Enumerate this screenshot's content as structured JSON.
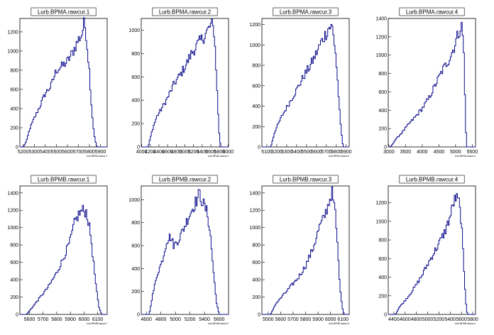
{
  "chart_data": [
    {
      "type": "histogram",
      "title": "Lurb.BPMA.rawcur.1",
      "xlabel": "Lurb.BPMA.rawcur.1",
      "xlim": [
        5170,
        5960
      ],
      "ylim": [
        0,
        1340
      ],
      "xticks": [
        "5200",
        "5300",
        "5400",
        "5500",
        "5600",
        "5700",
        "5800",
        "5900"
      ],
      "yticks": [
        "0",
        "200",
        "400",
        "600",
        "800",
        "1000",
        "1200"
      ],
      "profile": [
        [
          5200,
          0
        ],
        [
          5230,
          60
        ],
        [
          5260,
          190
        ],
        [
          5300,
          300
        ],
        [
          5350,
          420
        ],
        [
          5400,
          560
        ],
        [
          5450,
          630
        ],
        [
          5500,
          800
        ],
        [
          5550,
          840
        ],
        [
          5600,
          890
        ],
        [
          5650,
          990
        ],
        [
          5700,
          1120
        ],
        [
          5730,
          1170
        ],
        [
          5750,
          1280
        ],
        [
          5765,
          1240
        ],
        [
          5775,
          1100
        ],
        [
          5800,
          780
        ],
        [
          5820,
          400
        ],
        [
          5840,
          150
        ],
        [
          5860,
          20
        ],
        [
          5870,
          0
        ]
      ]
    },
    {
      "type": "histogram",
      "title": "Lurb.BPMA.rawcur.2",
      "xlabel": "Lurb.BPMA.rawcur.2",
      "xlim": [
        3990,
        6010
      ],
      "ylim": [
        0,
        1100
      ],
      "xticks": [
        "4000",
        "4200",
        "4400",
        "4600",
        "4800",
        "5000",
        "5200",
        "5400",
        "5600",
        "5800",
        "6000"
      ],
      "yticks": [
        "0",
        "200",
        "400",
        "600",
        "800",
        "1000"
      ],
      "profile": [
        [
          4150,
          0
        ],
        [
          4250,
          150
        ],
        [
          4350,
          260
        ],
        [
          4450,
          320
        ],
        [
          4600,
          420
        ],
        [
          4750,
          540
        ],
        [
          4900,
          620
        ],
        [
          5050,
          720
        ],
        [
          5150,
          800
        ],
        [
          5300,
          880
        ],
        [
          5450,
          950
        ],
        [
          5550,
          1010
        ],
        [
          5620,
          1050
        ],
        [
          5680,
          980
        ],
        [
          5720,
          700
        ],
        [
          5760,
          350
        ],
        [
          5800,
          80
        ],
        [
          5830,
          0
        ]
      ]
    },
    {
      "type": "histogram",
      "title": "Lurb.BPMA.rawcur.3",
      "xlabel": "Lurb.BPMA.rawcur.3",
      "xlim": [
        5050,
        5930
      ],
      "ylim": [
        0,
        1260
      ],
      "xticks": [
        "5100",
        "5200",
        "5300",
        "5400",
        "5500",
        "5600",
        "5700",
        "5800",
        "5900"
      ],
      "yticks": [
        "0",
        "200",
        "400",
        "600",
        "800",
        "1000",
        "1200"
      ],
      "profile": [
        [
          5140,
          0
        ],
        [
          5180,
          150
        ],
        [
          5250,
          300
        ],
        [
          5320,
          420
        ],
        [
          5400,
          560
        ],
        [
          5470,
          690
        ],
        [
          5540,
          800
        ],
        [
          5600,
          920
        ],
        [
          5650,
          1030
        ],
        [
          5700,
          1120
        ],
        [
          5730,
          1180
        ],
        [
          5760,
          1170
        ],
        [
          5790,
          950
        ],
        [
          5820,
          550
        ],
        [
          5840,
          250
        ],
        [
          5860,
          60
        ],
        [
          5870,
          0
        ]
      ]
    },
    {
      "type": "histogram",
      "title": "Lurb.BPMA.rawcur.4",
      "xlabel": "Lurb.BPMA.rawcur.4",
      "xlim": [
        2980,
        5600
      ],
      "ylim": [
        0,
        1400
      ],
      "xticks": [
        "3000",
        "3500",
        "4000",
        "4500",
        "5000",
        "5500"
      ],
      "yticks": [
        "0",
        "200",
        "400",
        "600",
        "800",
        "1000",
        "1200",
        "1400"
      ],
      "profile": [
        [
          3050,
          0
        ],
        [
          3200,
          80
        ],
        [
          3400,
          160
        ],
        [
          3600,
          250
        ],
        [
          3800,
          330
        ],
        [
          4000,
          420
        ],
        [
          4200,
          530
        ],
        [
          4400,
          680
        ],
        [
          4600,
          830
        ],
        [
          4800,
          950
        ],
        [
          4950,
          1080
        ],
        [
          5050,
          1200
        ],
        [
          5150,
          1300
        ],
        [
          5200,
          1320
        ],
        [
          5250,
          1000
        ],
        [
          5300,
          300
        ],
        [
          5330,
          0
        ]
      ]
    },
    {
      "type": "histogram",
      "title": "Lurb.BPMB.rawcur.1",
      "xlabel": "Lurb.BPMB.rawcur.1",
      "xlim": [
        5530,
        6170
      ],
      "ylim": [
        0,
        1480
      ],
      "xticks": [
        "5600",
        "5700",
        "5800",
        "5900",
        "6000",
        "6100"
      ],
      "yticks": [
        "0",
        "200",
        "400",
        "600",
        "800",
        "1000",
        "1200",
        "1400"
      ],
      "profile": [
        [
          5580,
          0
        ],
        [
          5620,
          80
        ],
        [
          5680,
          200
        ],
        [
          5740,
          320
        ],
        [
          5800,
          480
        ],
        [
          5850,
          650
        ],
        [
          5900,
          850
        ],
        [
          5930,
          1050
        ],
        [
          5960,
          1150
        ],
        [
          5990,
          1200
        ],
        [
          6020,
          1180
        ],
        [
          6050,
          900
        ],
        [
          6070,
          600
        ],
        [
          6090,
          300
        ],
        [
          6110,
          80
        ],
        [
          6130,
          0
        ]
      ]
    },
    {
      "type": "histogram",
      "title": "Lurb.BPMB.rawcur.2",
      "xlabel": "Lurb.BPMB.rawcur.2",
      "xlim": [
        4530,
        5730
      ],
      "ylim": [
        0,
        1120
      ],
      "xticks": [
        "4600",
        "4800",
        "5000",
        "5200",
        "5400",
        "5600"
      ],
      "yticks": [
        "0",
        "200",
        "400",
        "600",
        "800",
        "1000"
      ],
      "profile": [
        [
          4640,
          0
        ],
        [
          4680,
          150
        ],
        [
          4750,
          350
        ],
        [
          4820,
          470
        ],
        [
          4880,
          640
        ],
        [
          4930,
          680
        ],
        [
          4980,
          600
        ],
        [
          5050,
          660
        ],
        [
          5120,
          760
        ],
        [
          5200,
          880
        ],
        [
          5280,
          980
        ],
        [
          5330,
          1050
        ],
        [
          5380,
          970
        ],
        [
          5440,
          880
        ],
        [
          5480,
          700
        ],
        [
          5520,
          400
        ],
        [
          5560,
          120
        ],
        [
          5600,
          0
        ]
      ]
    },
    {
      "type": "histogram",
      "title": "Lurb.BPMB.rawcur.3",
      "xlabel": "Lurb.BPMB.rawcur.3",
      "xlim": [
        5450,
        6150
      ],
      "ylim": [
        0,
        1480
      ],
      "xticks": [
        "5500",
        "5600",
        "5700",
        "5800",
        "5900",
        "6000",
        "6100"
      ],
      "yticks": [
        "0",
        "200",
        "400",
        "600",
        "800",
        "1000",
        "1200",
        "1400"
      ],
      "profile": [
        [
          5520,
          0
        ],
        [
          5560,
          120
        ],
        [
          5620,
          220
        ],
        [
          5680,
          320
        ],
        [
          5740,
          420
        ],
        [
          5800,
          560
        ],
        [
          5860,
          760
        ],
        [
          5910,
          1000
        ],
        [
          5950,
          1120
        ],
        [
          5990,
          1300
        ],
        [
          6010,
          1420
        ],
        [
          6040,
          1150
        ],
        [
          6060,
          700
        ],
        [
          6080,
          250
        ],
        [
          6100,
          40
        ],
        [
          6110,
          0
        ]
      ]
    },
    {
      "type": "histogram",
      "title": "Lurb.BPMB.rawcur.4",
      "xlabel": "Lurb.BPMB.rawcur.4",
      "xlim": [
        4300,
        5850
      ],
      "ylim": [
        0,
        1380
      ],
      "xticks": [
        "4400",
        "4600",
        "4800",
        "5000",
        "5200",
        "5400",
        "5600",
        "5800"
      ],
      "yticks": [
        "0",
        "200",
        "400",
        "600",
        "800",
        "1000",
        "1200"
      ],
      "profile": [
        [
          4430,
          0
        ],
        [
          4500,
          80
        ],
        [
          4600,
          150
        ],
        [
          4700,
          230
        ],
        [
          4800,
          320
        ],
        [
          4900,
          420
        ],
        [
          5000,
          540
        ],
        [
          5100,
          650
        ],
        [
          5200,
          760
        ],
        [
          5300,
          880
        ],
        [
          5400,
          1050
        ],
        [
          5460,
          1200
        ],
        [
          5500,
          1250
        ],
        [
          5550,
          1220
        ],
        [
          5600,
          1000
        ],
        [
          5650,
          400
        ],
        [
          5690,
          50
        ],
        [
          5710,
          0
        ]
      ]
    }
  ]
}
